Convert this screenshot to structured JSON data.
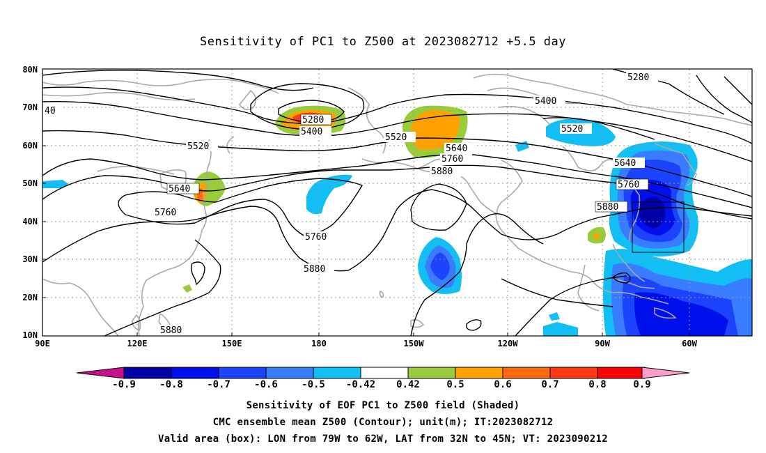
{
  "title": "Sensitivity of PC1 to Z500 at 2023082712 +5.5 day",
  "lat_labels": [
    "80N",
    "70N",
    "60N",
    "50N",
    "40N",
    "30N",
    "20N",
    "10N"
  ],
  "lon_labels": [
    "90E",
    "120E",
    "150E",
    "180",
    "150W",
    "120W",
    "90W",
    "60W"
  ],
  "contour_labels": {
    "c40": "40",
    "c5280a": "5280",
    "c5280b": "5280",
    "c5400a": "5400",
    "c5400b": "5400",
    "c5520a": "5520",
    "c5520b": "5520",
    "c5520c": "5520",
    "c5640a": "5640",
    "c5640b": "5640",
    "c5640c": "5640",
    "c5760a": "5760",
    "c5760b": "5760",
    "c5760c": "5760",
    "c5760d": "5760",
    "c5880a": "5880",
    "c5880b": "5880",
    "c5880c": "5880",
    "c5880d": "5880"
  },
  "colorbar": {
    "labels": [
      "-0.9",
      "-0.8",
      "-0.7",
      "-0.6",
      "-0.5",
      "-0.42",
      "0.42",
      "0.5",
      "0.6",
      "0.7",
      "0.8",
      "0.9"
    ],
    "colors": [
      "#0000a8",
      "#0010ec",
      "#1c44ff",
      "#3a7cff",
      "#12bff5",
      "#ffffff",
      "#98cc3a",
      "#ffa200",
      "#ff6a10",
      "#ff3a14",
      "#ff0000"
    ],
    "low_end_color": "#c8108c",
    "high_end_color": "#ff9ec8"
  },
  "caption": {
    "line1": "Sensitivity of EOF PC1 to Z500 field (Shaded)",
    "line2": "CMC ensemble mean Z500 (Contour); unit(m); IT:2023082712",
    "line3": "Valid area (box): LON from 79W to 62W, LAT from 32N to 45N; VT: 2023090212"
  }
}
